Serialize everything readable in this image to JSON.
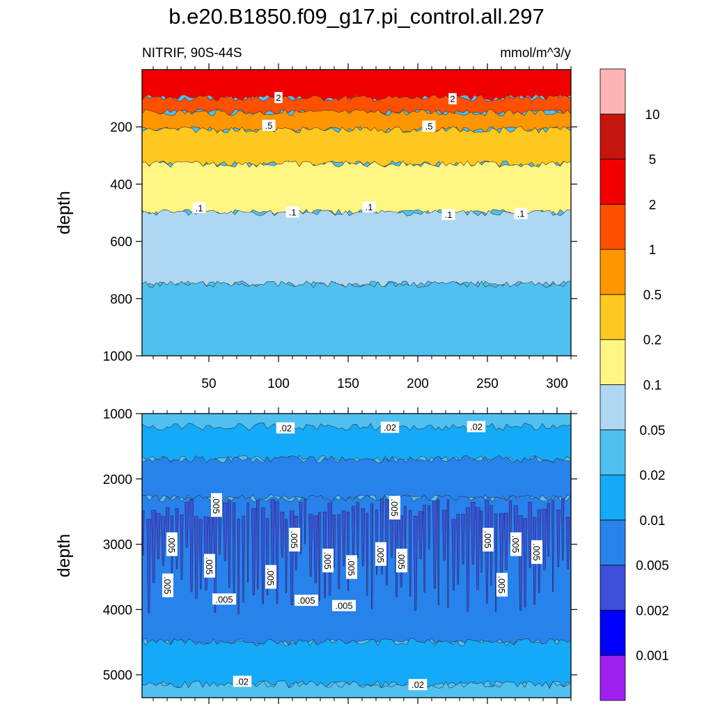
{
  "title": "b.e20.B1850.f09_g17.pi_control.all.297",
  "left_subtitle": "NITRIF, 90S-44S",
  "right_subtitle": "mmol/m^3/y",
  "colorbar": {
    "colors": [
      "#a020f0",
      "#0000ff",
      "#3c50dc",
      "#2882ec",
      "#14aaf8",
      "#50c0f0",
      "#aed8f2",
      "#fff582",
      "#ffc81e",
      "#ff9600",
      "#ff5000",
      "#f00000",
      "#c8140f",
      "#ffb4b4"
    ],
    "labels": [
      "0.001",
      "0.002",
      "0.005",
      "0.01",
      "0.02",
      "0.05",
      "0.1",
      "0.2",
      "0.5",
      "1",
      "2",
      "5",
      "10"
    ]
  },
  "chart_data": [
    {
      "type": "contour",
      "panel": "upper",
      "x_ticks": [
        50,
        100,
        150,
        200,
        250,
        300
      ],
      "xlim": [
        2,
        310
      ],
      "ylim": [
        1000,
        0
      ],
      "y_ticks": [
        200,
        400,
        600,
        800,
        1000
      ],
      "ylabel": "depth",
      "bands": [
        {
          "color": "#f00000",
          "top": 0,
          "bottom": 100
        },
        {
          "color": "#ff5000",
          "top": 100,
          "bottom": 150
        },
        {
          "color": "#ff9600",
          "top": 150,
          "bottom": 210
        },
        {
          "color": "#ffc81e",
          "top": 210,
          "bottom": 330
        },
        {
          "color": "#fff582",
          "top": 330,
          "bottom": 500
        },
        {
          "color": "#aed8f2",
          "top": 500,
          "bottom": 750
        },
        {
          "color": "#50c0f0",
          "top": 750,
          "bottom": 1000
        }
      ],
      "contour_labels": [
        {
          "text": "2",
          "x": 100,
          "y": 100
        },
        {
          "text": "2",
          "x": 225,
          "y": 104
        },
        {
          "text": ".5",
          "x": 93,
          "y": 197
        },
        {
          "text": ".5",
          "x": 208,
          "y": 200
        },
        {
          "text": ".1",
          "x": 43,
          "y": 485
        },
        {
          "text": ".1",
          "x": 110,
          "y": 500
        },
        {
          "text": ".1",
          "x": 165,
          "y": 482
        },
        {
          "text": ".1",
          "x": 222,
          "y": 508
        },
        {
          "text": ".1",
          "x": 274,
          "y": 505
        }
      ]
    },
    {
      "type": "contour",
      "panel": "lower",
      "xlim": [
        2,
        310
      ],
      "ylim": [
        5350,
        1000
      ],
      "y_ticks": [
        1000,
        2000,
        3000,
        4000,
        5000
      ],
      "ylabel": "depth",
      "bands": [
        {
          "color": "#50c0f0",
          "top": 1000,
          "bottom": 1200
        },
        {
          "color": "#14aaf8",
          "top": 1200,
          "bottom": 1700
        },
        {
          "color": "#2882ec",
          "top": 1700,
          "bottom": 2300
        },
        {
          "color": "#2882ec",
          "top": 2300,
          "bottom": 4500
        },
        {
          "color": "#14aaf8",
          "top": 4500,
          "bottom": 5150
        },
        {
          "color": "#50c0f0",
          "top": 5150,
          "bottom": 5350
        }
      ],
      "contour_labels": [
        {
          "text": ".02",
          "x": 105,
          "y": 1230
        },
        {
          "text": ".02",
          "x": 180,
          "y": 1220
        },
        {
          "text": ".02",
          "x": 242,
          "y": 1210
        },
        {
          "text": ".02",
          "x": 74,
          "y": 5110
        },
        {
          "text": ".02",
          "x": 200,
          "y": 5160
        },
        {
          "text": ".005",
          "x": 55,
          "y": 2400
        },
        {
          "text": ".005",
          "x": 183,
          "y": 2440
        },
        {
          "text": ".005",
          "x": 23,
          "y": 3000
        },
        {
          "text": ".005",
          "x": 111,
          "y": 2930
        },
        {
          "text": ".005",
          "x": 250,
          "y": 2930
        },
        {
          "text": ".005",
          "x": 270,
          "y": 3000
        },
        {
          "text": ".005",
          "x": 285,
          "y": 3120
        },
        {
          "text": ".005",
          "x": 50,
          "y": 3330
        },
        {
          "text": ".005",
          "x": 135,
          "y": 3250
        },
        {
          "text": ".005",
          "x": 152,
          "y": 3350
        },
        {
          "text": ".005",
          "x": 173,
          "y": 3150
        },
        {
          "text": ".005",
          "x": 188,
          "y": 3250
        },
        {
          "text": ".005",
          "x": 94,
          "y": 3500
        },
        {
          "text": ".005",
          "x": 20,
          "y": 3630
        },
        {
          "text": ".005",
          "x": 260,
          "y": 3620
        },
        {
          "text": ".005",
          "x": 61,
          "y": 3850
        },
        {
          "text": ".005",
          "x": 120,
          "y": 3870
        },
        {
          "text": ".005",
          "x": 147,
          "y": 3950
        }
      ]
    }
  ]
}
